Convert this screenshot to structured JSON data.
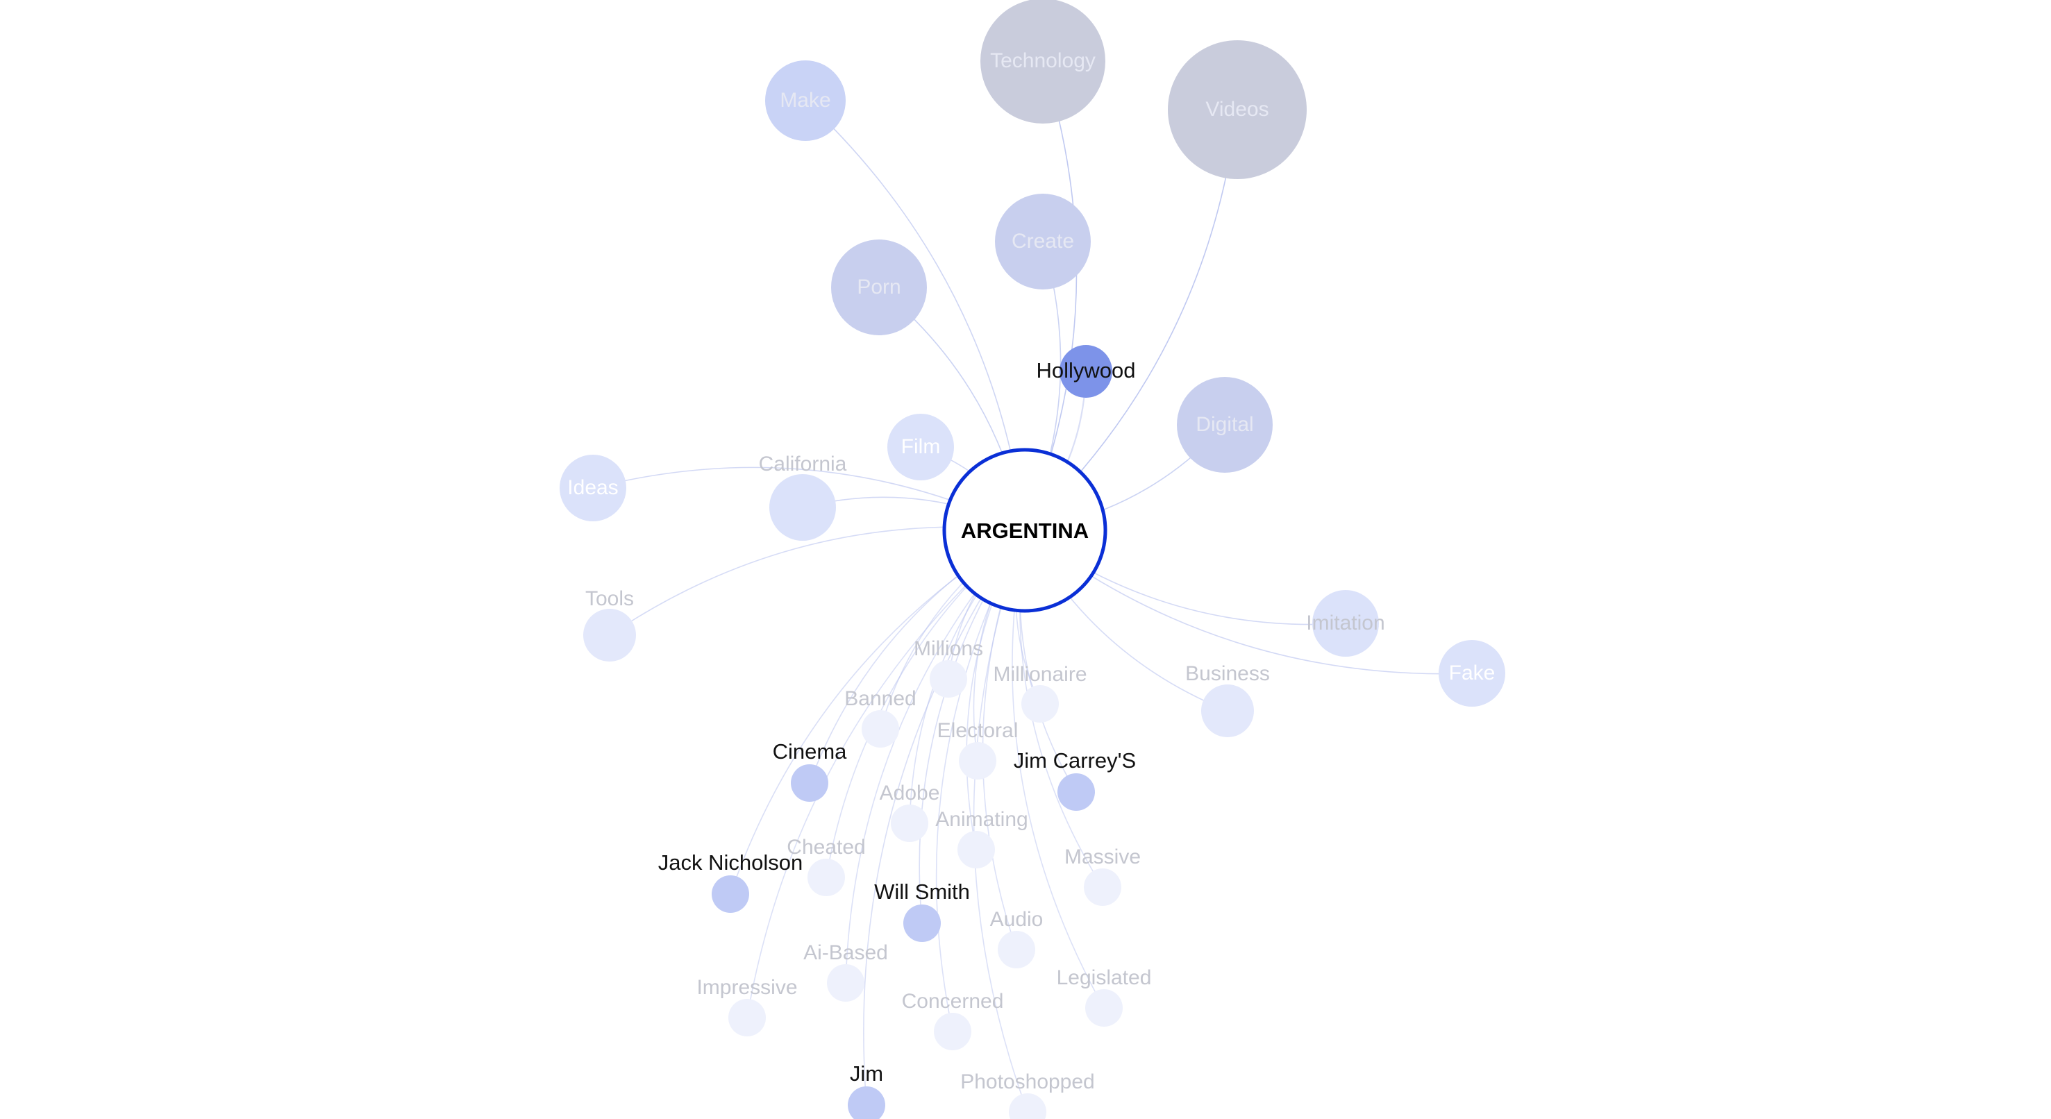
{
  "graph": {
    "center": {
      "label": "ARGENTINA"
    },
    "nodes": [
      {
        "id": "technology",
        "label": "Technology",
        "tier": "grey",
        "level": 1.0
      },
      {
        "id": "videos",
        "label": "Videos",
        "tier": "grey",
        "level": 1.0
      },
      {
        "id": "make",
        "label": "Make",
        "tier": "blue-soft",
        "level": 0.6
      },
      {
        "id": "create",
        "label": "Create",
        "tier": "grey-blue",
        "level": 0.7
      },
      {
        "id": "porn",
        "label": "Porn",
        "tier": "grey-blue",
        "level": 0.7
      },
      {
        "id": "hollywood",
        "label": "Hollywood",
        "tier": "blue-strong",
        "level": 0.3
      },
      {
        "id": "digital",
        "label": "Digital",
        "tier": "grey-blue",
        "level": 0.7
      },
      {
        "id": "film",
        "label": "Film",
        "tier": "blue-faint",
        "level": 0.5
      },
      {
        "id": "california",
        "label": "California",
        "tier": "blue-faint",
        "level": 0.5
      },
      {
        "id": "ideas",
        "label": "Ideas",
        "tier": "blue-faint",
        "level": 0.5
      },
      {
        "id": "tools",
        "label": "Tools",
        "tier": "blue-pale",
        "level": 0.4
      },
      {
        "id": "imitation",
        "label": "Imitation",
        "tier": "blue-faint",
        "level": 0.5
      },
      {
        "id": "fake",
        "label": "Fake",
        "tier": "blue-faint",
        "level": 0.5
      },
      {
        "id": "business",
        "label": "Business",
        "tier": "blue-pale",
        "level": 0.4
      },
      {
        "id": "millions",
        "label": "Millions",
        "tier": "blue-ghost",
        "level": 0.25
      },
      {
        "id": "millionaire",
        "label": "Millionaire",
        "tier": "blue-ghost",
        "level": 0.25
      },
      {
        "id": "banned",
        "label": "Banned",
        "tier": "blue-ghost",
        "level": 0.25
      },
      {
        "id": "electoral",
        "label": "Electoral",
        "tier": "blue-ghost",
        "level": 0.25
      },
      {
        "id": "cinema",
        "label": "Cinema",
        "tier": "blue-mid",
        "level": 0.3
      },
      {
        "id": "jimcarreys",
        "label": "Jim Carrey'S",
        "tier": "blue-mid",
        "level": 0.3
      },
      {
        "id": "adobe",
        "label": "Adobe",
        "tier": "blue-ghost",
        "level": 0.25
      },
      {
        "id": "animating",
        "label": "Animating",
        "tier": "blue-ghost",
        "level": 0.25
      },
      {
        "id": "cheated",
        "label": "Cheated",
        "tier": "blue-ghost",
        "level": 0.25
      },
      {
        "id": "jacknicholson",
        "label": "Jack Nicholson",
        "tier": "blue-mid",
        "level": 0.3
      },
      {
        "id": "massive",
        "label": "Massive",
        "tier": "blue-ghost",
        "level": 0.25
      },
      {
        "id": "willsmith",
        "label": "Will Smith",
        "tier": "blue-mid",
        "level": 0.3
      },
      {
        "id": "audio",
        "label": "Audio",
        "tier": "blue-ghost",
        "level": 0.25
      },
      {
        "id": "aibased",
        "label": "Ai-Based",
        "tier": "blue-ghost",
        "level": 0.25
      },
      {
        "id": "impressive",
        "label": "Impressive",
        "tier": "blue-ghost",
        "level": 0.25
      },
      {
        "id": "legislated",
        "label": "Legislated",
        "tier": "blue-ghost",
        "level": 0.25
      },
      {
        "id": "concerned",
        "label": "Concerned",
        "tier": "blue-ghost",
        "level": 0.25
      },
      {
        "id": "jim",
        "label": "Jim",
        "tier": "blue-mid",
        "level": 0.3
      },
      {
        "id": "photoshopped",
        "label": "Photoshopped",
        "tier": "blue-ghost",
        "level": 0.25
      }
    ],
    "colors": {
      "center_stroke": "#0a2fd6",
      "center_fill": "#ffffff",
      "center_text": "#000000",
      "grey": "#c9ccdc",
      "grey-blue": "#c8cfee",
      "blue-soft": "#c9d3f6",
      "blue-strong": "#7d93e9",
      "blue-mid": "#bfcaf5",
      "blue-faint": "#dbe2fa",
      "blue-pale": "#e3e8fb",
      "blue-ghost": "#eef1fc",
      "label_dark": "#111111",
      "label_muted": "#c4c6cf",
      "label_on_node": "#e6e8f3",
      "edge": "#b5c0ee"
    }
  }
}
